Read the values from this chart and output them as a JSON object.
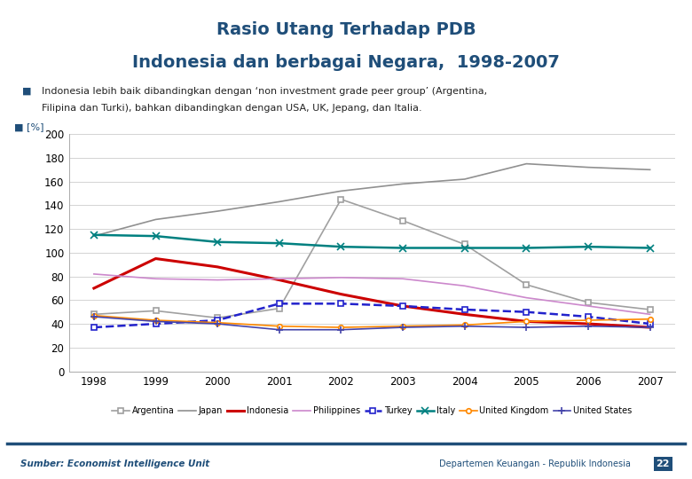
{
  "title_line1": "Rasio Utang Terhadap PDB",
  "title_line2": "Indonesia dan berbagai Negara,  1998-2007",
  "ylabel": "[%]",
  "years": [
    1998,
    1999,
    2000,
    2001,
    2002,
    2003,
    2004,
    2005,
    2006,
    2007
  ],
  "series": {
    "Argentina": {
      "values": [
        48,
        51,
        45,
        53,
        145,
        127,
        107,
        73,
        58,
        52
      ],
      "color": "#a0a0a0",
      "linestyle": "-",
      "marker": "s",
      "markersize": 4,
      "linewidth": 1.2
    },
    "Japan": {
      "values": [
        114,
        128,
        135,
        143,
        152,
        158,
        162,
        175,
        172,
        170
      ],
      "color": "#909090",
      "linestyle": "-",
      "marker": null,
      "markersize": 0,
      "linewidth": 1.2
    },
    "Indonesia": {
      "values": [
        70,
        95,
        88,
        77,
        65,
        55,
        48,
        42,
        40,
        37
      ],
      "color": "#cc0000",
      "linestyle": "-",
      "marker": null,
      "markersize": 0,
      "linewidth": 2.2
    },
    "Philippines": {
      "values": [
        82,
        78,
        77,
        78,
        79,
        78,
        72,
        62,
        55,
        48
      ],
      "color": "#cc88cc",
      "linestyle": "-",
      "marker": null,
      "markersize": 0,
      "linewidth": 1.2
    },
    "Turkey": {
      "values": [
        37,
        40,
        43,
        57,
        57,
        55,
        52,
        50,
        46,
        40
      ],
      "color": "#2222cc",
      "linestyle": "--",
      "marker": "s",
      "markersize": 4,
      "linewidth": 1.8
    },
    "Italy": {
      "values": [
        115,
        114,
        109,
        108,
        105,
        104,
        104,
        104,
        105,
        104
      ],
      "color": "#008080",
      "linestyle": "-",
      "marker": "x",
      "markersize": 6,
      "linewidth": 1.8
    },
    "United Kingdom": {
      "values": [
        47,
        43,
        41,
        38,
        37,
        38,
        39,
        42,
        43,
        44
      ],
      "color": "#ff8800",
      "linestyle": "-",
      "marker": "o",
      "markersize": 4,
      "linewidth": 1.2
    },
    "United States": {
      "values": [
        46,
        42,
        40,
        35,
        35,
        37,
        38,
        37,
        38,
        37
      ],
      "color": "#4444aa",
      "linestyle": "-",
      "marker": "+",
      "markersize": 6,
      "linewidth": 1.2
    }
  },
  "ylim": [
    0,
    200
  ],
  "yticks": [
    0,
    20,
    40,
    60,
    80,
    100,
    120,
    140,
    160,
    180,
    200
  ],
  "background_color": "#ffffff",
  "title_color": "#1f4e79",
  "bullet_color": "#1f4e79",
  "subtitle_line1": "Indonesia lebih baik dibandingkan dengan ‘non investment grade peer group’ (Argentina,",
  "subtitle_line2": "Filipina dan Turki), bahkan dibandingkan dengan USA, UK, Jepang, dan Italia.",
  "source_text": "Sumber: Economist Intelligence Unit",
  "footer_right": "Departemen Keuangan - Republik Indonesia",
  "page_num": "22"
}
